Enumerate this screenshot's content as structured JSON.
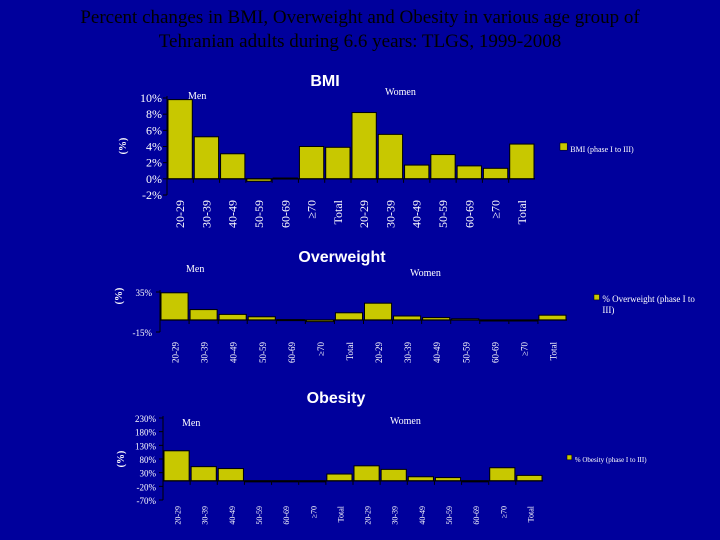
{
  "page": {
    "title_line1": "Percent changes in BMI, Overweight and Obesity in various age group of",
    "title_line2": "Tehranian adults during 6.6 years: TLGS, 1999-2008"
  },
  "colors": {
    "background": "#00009c",
    "bar": "#c8c800",
    "axis": "#000000",
    "title_text": "#000000",
    "label_text": "#ffffff"
  },
  "chart_data": [
    {
      "type": "bar",
      "title": "BMI",
      "ylabel": "(%)",
      "group_labels": [
        "Men",
        "Women"
      ],
      "categories": [
        "20-29",
        "30-39",
        "40-49",
        "50-59",
        "60-69",
        "≥70",
        "Total",
        "20-29",
        "30-39",
        "40-49",
        "50-59",
        "60-69",
        "≥70",
        "Total"
      ],
      "series": [
        {
          "name": "BMI (phase I to III)",
          "values": [
            9.8,
            5.2,
            3.1,
            -0.3,
            0.1,
            4.0,
            3.9,
            8.2,
            5.5,
            1.7,
            3.0,
            1.6,
            1.3,
            4.3
          ]
        }
      ],
      "yticks": [
        -2,
        0,
        2,
        4,
        6,
        8,
        10
      ],
      "ytick_labels": [
        "-2%",
        "0%",
        "2%",
        "4%",
        "6%",
        "8%",
        "10%"
      ],
      "ylim": [
        -2,
        10
      ],
      "legend": "right"
    },
    {
      "type": "bar",
      "title": "Overweight",
      "ylabel": "(%)",
      "group_labels": [
        "Men",
        "Women"
      ],
      "categories": [
        "20-29",
        "30-39",
        "40-49",
        "50-59",
        "60-69",
        "≥70",
        "Total",
        "20-29",
        "30-39",
        "40-49",
        "50-59",
        "60-69",
        "≥70",
        "Total"
      ],
      "series": [
        {
          "name": "% Overweight (phase I to III)",
          "values": [
            34,
            13,
            7,
            4,
            0.5,
            -2,
            9,
            21,
            5,
            3,
            1.5,
            0,
            0,
            6
          ]
        }
      ],
      "yticks": [
        -15,
        35
      ],
      "ytick_labels": [
        "-15%",
        "35%"
      ],
      "ylim": [
        -15,
        35
      ],
      "legend": "right"
    },
    {
      "type": "bar",
      "title": "Obesity",
      "ylabel": "(%)",
      "group_labels": [
        "Men",
        "Women"
      ],
      "categories": [
        "20-29",
        "30-39",
        "40-49",
        "50-59",
        "60-69",
        "≥70",
        "Total",
        "20-29",
        "30-39",
        "40-49",
        "50-59",
        "60-69",
        "≥70",
        "Total"
      ],
      "series": [
        {
          "name": "% Obesity (phase I to III)",
          "values": [
            110,
            52,
            45,
            0,
            0,
            -2,
            25,
            55,
            42,
            15,
            12,
            0,
            48,
            20
          ]
        }
      ],
      "yticks": [
        -70,
        -20,
        30,
        80,
        130,
        180,
        230
      ],
      "ytick_labels": [
        "-70%",
        "-20%",
        "30%",
        "80%",
        "130%",
        "180%",
        "230%"
      ],
      "ylim": [
        -70,
        230
      ],
      "legend": "right"
    }
  ]
}
